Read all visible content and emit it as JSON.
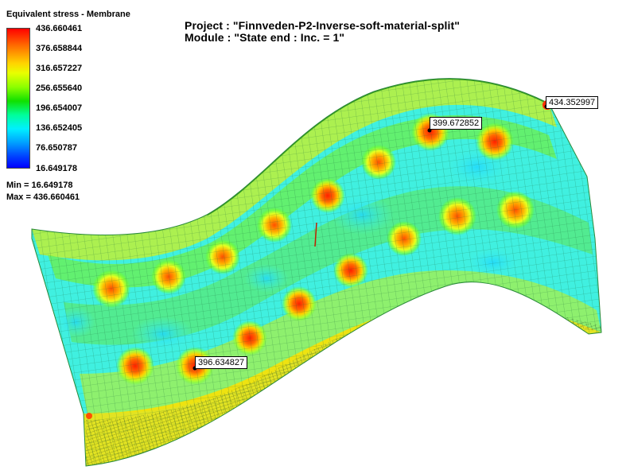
{
  "legend": {
    "title": "Equivalent stress - Membrane",
    "ticks": [
      "436.660461",
      "376.658844",
      "316.657227",
      "256.655640",
      "196.654007",
      "136.652405",
      "76.650787",
      "16.649178"
    ],
    "min_text": "Min =  16.649178",
    "max_text": "Max =  436.660461"
  },
  "header": {
    "project": "Project : \"Finnveden-P2-Inverse-soft-material-split\"",
    "module": "Module : \"State end : Inc. = 1\""
  },
  "callouts": [
    {
      "value": "434.352997"
    },
    {
      "value": "399.672852"
    },
    {
      "value": "396.634827"
    }
  ],
  "colors": {
    "high": "#ff2000",
    "mid_high": "#ffe000",
    "mid": "#60ff20",
    "low": "#40f0e8",
    "background": "#ffffff"
  }
}
